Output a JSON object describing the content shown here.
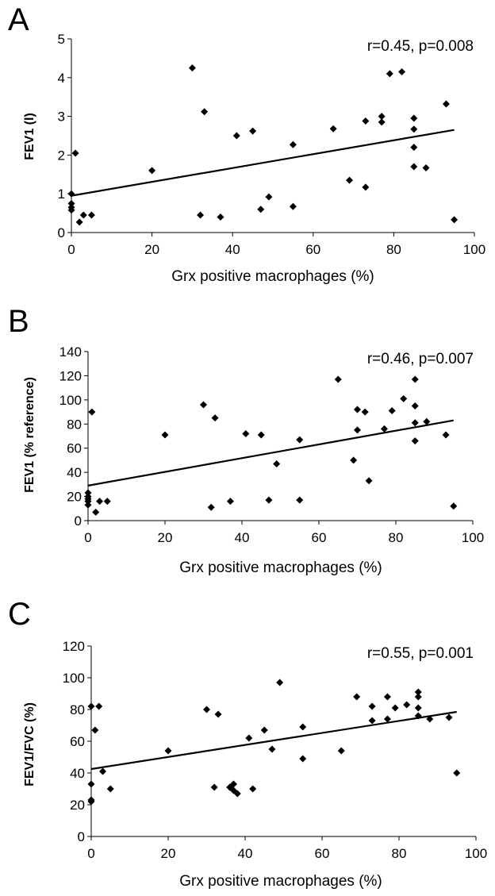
{
  "chart_data": [
    {
      "type": "scatter",
      "panel": "A",
      "xlabel": "Grx positive macrophages (%)",
      "ylabel": "FEV1 (l)",
      "annotation": "r=0.45, p=0.008",
      "xlim": [
        0,
        100
      ],
      "ylim": [
        0,
        5
      ],
      "x_ticks": [
        0,
        20,
        40,
        60,
        80,
        100
      ],
      "y_ticks": [
        0,
        1,
        2,
        3,
        4,
        5
      ],
      "trendline": {
        "x": [
          0,
          95
        ],
        "y": [
          0.95,
          2.65
        ]
      },
      "x": [
        0,
        0,
        0,
        0,
        1,
        2,
        3,
        5,
        20,
        30,
        32,
        33,
        37,
        41,
        45,
        47,
        49,
        55,
        55,
        65,
        69,
        73,
        73,
        77,
        77,
        79,
        82,
        85,
        85,
        85,
        85,
        88,
        93,
        95
      ],
      "y": [
        1.0,
        0.75,
        0.65,
        0.58,
        2.05,
        0.27,
        0.45,
        0.45,
        1.6,
        4.25,
        0.45,
        3.12,
        0.4,
        2.5,
        2.62,
        0.6,
        0.92,
        2.27,
        0.67,
        2.68,
        1.35,
        2.88,
        1.17,
        3.0,
        2.85,
        4.1,
        4.15,
        2.95,
        2.67,
        2.2,
        1.7,
        1.67,
        3.32,
        0.33
      ]
    },
    {
      "type": "scatter",
      "panel": "B",
      "xlabel": "Grx positive macrophages (%)",
      "ylabel": "FEV1 (% reference)",
      "annotation": "r=0.46, p=0.007",
      "xlim": [
        0,
        100
      ],
      "ylim": [
        0,
        140
      ],
      "x_ticks": [
        0,
        20,
        40,
        60,
        80,
        100
      ],
      "y_ticks": [
        0,
        20,
        40,
        60,
        80,
        100,
        120,
        140
      ],
      "trendline": {
        "x": [
          0,
          95
        ],
        "y": [
          29,
          83
        ]
      },
      "x": [
        0,
        0,
        0,
        0,
        0,
        1,
        2,
        3,
        5,
        20,
        30,
        32,
        33,
        37,
        41,
        45,
        47,
        49,
        55,
        55,
        65,
        69,
        70,
        70,
        72,
        73,
        77,
        79,
        82,
        85,
        85,
        85,
        85,
        88,
        93,
        95
      ],
      "y": [
        23,
        20,
        16,
        13,
        18,
        90,
        7,
        16,
        16,
        71,
        96,
        11,
        85,
        16,
        72,
        71,
        17,
        47,
        67,
        17,
        117,
        50,
        92,
        75,
        90,
        33,
        76,
        91,
        101,
        117,
        95,
        81,
        66,
        82,
        71,
        12
      ]
    },
    {
      "type": "scatter",
      "panel": "C",
      "xlabel": "Grx positive macrophages (%)",
      "ylabel": "FEV1/FVC (%)",
      "annotation": "r=0.55, p=0.001",
      "xlim": [
        0,
        100
      ],
      "ylim": [
        0,
        120
      ],
      "x_ticks": [
        0,
        20,
        40,
        60,
        80,
        100
      ],
      "y_ticks": [
        0,
        20,
        40,
        60,
        80,
        100,
        120
      ],
      "trendline": {
        "x": [
          0,
          95
        ],
        "y": [
          42.5,
          78.5
        ]
      },
      "x": [
        0,
        0,
        0,
        0,
        1,
        2,
        3,
        5,
        20,
        30,
        32,
        33,
        36,
        37,
        37,
        38,
        41,
        42,
        45,
        47,
        49,
        55,
        55,
        65,
        69,
        73,
        73,
        77,
        77,
        79,
        82,
        85,
        85,
        85,
        85,
        88,
        93,
        95
      ],
      "y": [
        82,
        33,
        23,
        22,
        67,
        82,
        41,
        30,
        54,
        80,
        31,
        77,
        31,
        33,
        29,
        27,
        62,
        30,
        67,
        55,
        97,
        69,
        49,
        54,
        88,
        82,
        73,
        88,
        74,
        81,
        83,
        91,
        88,
        81,
        76,
        74,
        75,
        40
      ]
    }
  ]
}
